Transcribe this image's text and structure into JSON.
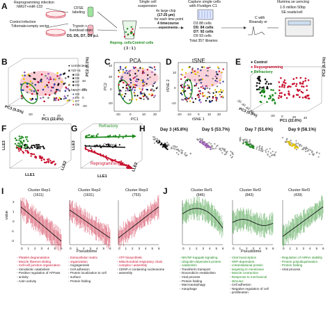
{
  "panels": [
    "A",
    "B",
    "C",
    "D",
    "E",
    "F",
    "G",
    "H",
    "I",
    "J"
  ],
  "A": {
    "reprog_infection": "Reprogramming infection",
    "reprog_vectors": "hMGT+miR-133",
    "control_infection": "Control infection",
    "control_vectors": "Tdtomato+empty vector",
    "cfse": "CFSE",
    "labeling": "labeling",
    "trypsin": "Trypsin +",
    "livedead": "live/dead stain",
    "days": "D3, D5, D7, D9 p.i.",
    "reprog_cells": "Reprog. cells",
    "control_cells": "Control cells",
    "ratio": "( 3 : 1 )",
    "single_cell": "Single cell",
    "suspension": "suspension",
    "chip1": "4x large chip",
    "chip2": "(17-25 ",
    "chip2b": "μm",
    "chip2c": ")",
    "chip3": "for each time point",
    "chip4": "4 timecourse",
    "chip5": "experiments",
    "capture1": "Capture single cells",
    "capture2": "with Fluidigm C1",
    "d3": "D3  88 cells",
    "d5": "D5: 84 cells",
    "d7": "D7: 92 cells",
    "d9": "D9  93 cells",
    "total": "Total 357 libraries",
    "cdna1": "C with",
    "cdna2": "Bioanaly er",
    "seq1": "Illumina se uencing",
    "seq2": "1-5 million 50bp",
    "seq3": "SE reads/cell"
  },
  "B": {
    "legend": [
      "Uninfected",
      "TdT+E",
      "D3",
      "D5",
      "D7",
      "D9",
      "hMGT+133",
      "D3",
      "D5",
      "D7",
      "D9"
    ],
    "xaxis": "PC1 (22.6%)",
    "yaxis": "PC2 (8.1%)",
    "zaxis": "PC3 (5.5%)",
    "xticks": [
      "-20",
      "0",
      "20"
    ],
    "yticks": [
      "-20",
      "0",
      "20",
      "40"
    ]
  },
  "C": {
    "title": "PCA",
    "xaxis": "PC1",
    "yaxis": "PC2",
    "xticks": [
      "-20",
      "0",
      "10",
      "20"
    ],
    "yticks": [
      "-20",
      "0",
      "20",
      "40"
    ]
  },
  "D": {
    "title": "tSNE",
    "xaxis": "tSNE 1",
    "yaxis": "tSNE 2",
    "xticks": [
      "-20",
      "-10",
      "0",
      "10",
      "20"
    ],
    "yticks": [
      "-10",
      "0",
      "10"
    ]
  },
  "E": {
    "legend": [
      "Control",
      "Reprogramming",
      "Refractory"
    ],
    "xaxis": "PC1 (22.6%)",
    "yaxis": "PC2 (8.1%)",
    "zaxis": "PC3 (5.5%)",
    "xticks": [
      "-20",
      "0",
      "20",
      "40"
    ],
    "yticks": [
      "-20",
      "-40",
      "-60",
      "-80"
    ]
  },
  "F": {
    "yaxis": "LLE3",
    "xaxis": "LLE1",
    "zaxis": "LLE2"
  },
  "G": {
    "refractory": "Refractory",
    "control": "Control",
    "reprogramming": "Reprogramming",
    "yaxis": "LLE3",
    "xaxis": "LLE1",
    "zaxis": "LLE2"
  },
  "H": {
    "days": [
      "Day 3 (45.8%)",
      "Day 5 (53.7%)",
      "Day 7 (51.6%)",
      "Day 9 (58.1%)"
    ]
  },
  "I": {
    "clusters": [
      {
        "name": "Cluster Rep1",
        "n": "(1611)"
      },
      {
        "name": "Cluster Rep2",
        "n": "(1631)"
      },
      {
        "name": "Cluster Rep3",
        "n": "(753)"
      }
    ],
    "yaxis": "value",
    "yticks": [
      "2",
      "1",
      "0",
      "-1",
      "-2"
    ],
    "xticks": [
      "0",
      "1",
      "2",
      "3",
      "4",
      "5",
      "6"
    ],
    "xaxis": "Pseudotime",
    "go": [
      {
        "red": [
          "Platelet degranulation",
          "Muscle filament sliding",
          "Cell-cell junction organization"
        ],
        "black": [
          "Xenobiotic catabolism",
          "Positive regulation of ATPase",
          "activity",
          "Actin activity"
        ]
      },
      {
        "red": [
          "Extracellular matrix",
          "organization"
        ],
        "black": [
          "Angiogenesis",
          "Cell adhesion",
          "Protein localization to cell",
          "surface",
          "Protein folding"
        ]
      },
      {
        "red": [
          "ATP biosynthetic",
          "Mitochondrial respiratory chain",
          "complex I assembly"
        ],
        "black": [
          "CENP-A containing nucleosome",
          "assembly"
        ]
      }
    ]
  },
  "J": {
    "clusters": [
      {
        "name": "Cluster Ref1",
        "n": "(846)"
      },
      {
        "name": "Cluster Ref2",
        "n": "(843)"
      },
      {
        "name": "Cluster Ref3",
        "n": "(439)"
      }
    ],
    "xaxis": "Pseudotime",
    "go": [
      {
        "green": [
          "NIK/NF-kappaB signaling",
          "Ubiquitin-dependent protein",
          "catabolism"
        ],
        "black": [
          "Transferrin transport",
          "Doxorubicin metabolism",
          "Viral process",
          "Protein folding",
          "Macroautophagy",
          "Autophage"
        ]
      },
      {
        "green": [
          "Viral transcription",
          "SRP-dependent",
          "cotranslational protein",
          "targeting to membrane",
          "Muscle contraction",
          "Response to mechanical",
          "stimulus"
        ],
        "black": [
          "Cell adhesion",
          "Negative regulation of cell",
          "proliferation"
        ]
      },
      {
        "green": [
          "Regulation of mRNA stability",
          "Protein polyubiquitination",
          "Protein folding"
        ],
        "black": [
          "Viral process"
        ]
      }
    ]
  },
  "colors": {
    "red": "#c8102e",
    "green": "#1f8b1f",
    "gray": "#9a9a9a",
    "blue": "#2c3e9e",
    "purple": "#9b59b6",
    "yellow": "#e6c200",
    "pink": "#f7b6c2",
    "lightgreen": "#9ee29e"
  }
}
